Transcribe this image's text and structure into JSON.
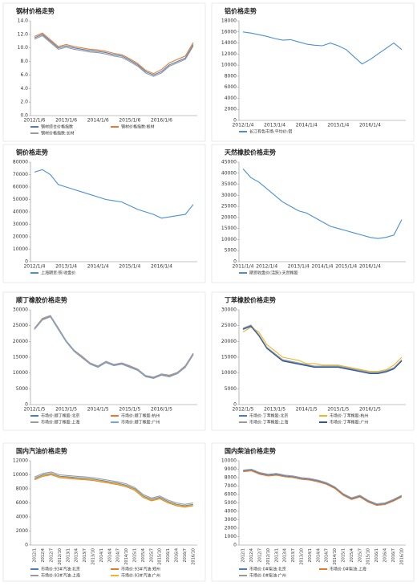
{
  "chart_data": [
    {
      "type": "line",
      "title": "钢材价格走势",
      "categories": [
        "2012/1/6",
        null,
        null,
        null,
        "2013/1/6",
        null,
        null,
        null,
        "2014/1/6",
        null,
        null,
        null,
        "2015/1/6",
        null,
        null,
        null,
        "2016/1/6",
        null,
        null,
        null,
        null
      ],
      "ylim": [
        0,
        14
      ],
      "yticks": [
        {
          "value": 0,
          "label": "0.0"
        },
        {
          "value": 2,
          "label": "2.0"
        },
        {
          "value": 4,
          "label": "4.0"
        },
        {
          "value": 6,
          "label": "6.0"
        },
        {
          "value": 8,
          "label": "8.0"
        },
        {
          "value": 10,
          "label": "10.0"
        },
        {
          "value": 12,
          "label": "12.0"
        },
        {
          "value": 14,
          "label": "14.0"
        }
      ],
      "series": [
        {
          "name": "钢材综合价格指数",
          "color": "#4a7ebb",
          "values": [
            11.5,
            12,
            11,
            10,
            10.3,
            10,
            9.8,
            9.6,
            9.5,
            9.3,
            9,
            8.8,
            8.2,
            7.5,
            6.5,
            6,
            6.5,
            7.5,
            8,
            8.5,
            10.5
          ]
        },
        {
          "name": "钢材价格指数:板材",
          "color": "#e8792b",
          "values": [
            11.7,
            12.2,
            11.2,
            10.2,
            10.5,
            10.2,
            10,
            9.8,
            9.7,
            9.5,
            9.2,
            9,
            8.4,
            7.7,
            6.7,
            6.2,
            6.8,
            7.8,
            8.3,
            8.8,
            10.8
          ]
        },
        {
          "name": "钢材价格指数:长材",
          "color": "#999999",
          "values": [
            11.3,
            11.8,
            10.8,
            9.8,
            10.1,
            9.8,
            9.6,
            9.4,
            9.3,
            9.1,
            8.8,
            8.6,
            8,
            7.3,
            6.3,
            5.8,
            6.3,
            7.3,
            7.8,
            8.3,
            10.3
          ]
        }
      ]
    },
    {
      "type": "line",
      "title": "铝价格走势",
      "categories": [
        "2012/1/4",
        null,
        null,
        null,
        "2013/1/4",
        null,
        null,
        null,
        "2014/1/4",
        null,
        null,
        null,
        "2015/1/4",
        null,
        null,
        null,
        "2016/1/4",
        null,
        null,
        null,
        null
      ],
      "ylim": [
        0,
        18000
      ],
      "yticks": [
        0,
        2000,
        4000,
        6000,
        8000,
        10000,
        12000,
        14000,
        16000,
        18000
      ],
      "series": [
        {
          "name": "长江有色市场:平均价:铝",
          "color": "#4a8fd4",
          "values": [
            16000,
            15800,
            15500,
            15200,
            14800,
            14500,
            14600,
            14200,
            13800,
            13600,
            13500,
            14000,
            13500,
            12800,
            11500,
            10200,
            11000,
            12000,
            13000,
            14000,
            12800
          ]
        }
      ]
    },
    {
      "type": "line",
      "title": "铜价格走势",
      "categories": [
        "2012/1/4",
        null,
        null,
        null,
        "2013/1/4",
        null,
        null,
        null,
        "2014/1/4",
        null,
        null,
        null,
        "2015/1/4",
        null,
        null,
        null,
        "2016/1/4",
        null,
        null,
        null,
        null
      ],
      "ylim": [
        0,
        80000
      ],
      "yticks": [
        0,
        10000,
        20000,
        30000,
        40000,
        50000,
        60000,
        70000,
        80000
      ],
      "series": [
        {
          "name": "上海期货:铜 收盘价",
          "color": "#4a8fd4",
          "values": [
            72000,
            74000,
            70000,
            62000,
            60000,
            58000,
            56000,
            54000,
            52000,
            50000,
            49000,
            48000,
            45000,
            42000,
            40000,
            38000,
            35000,
            36000,
            37000,
            38000,
            46000
          ]
        }
      ]
    },
    {
      "type": "line",
      "title": "天然橡胶价格走势",
      "categories": [
        "2011/1/4",
        null,
        null,
        "2012/1/4",
        null,
        null,
        null,
        "2013/1/4",
        null,
        null,
        "2014/1/4",
        null,
        null,
        "2015/1/4",
        null,
        null,
        "2016/1/4",
        null,
        null,
        null,
        null
      ],
      "ylim": [
        0,
        45000
      ],
      "yticks": [
        0,
        5000,
        10000,
        15000,
        20000,
        25000,
        30000,
        35000,
        40000,
        45000
      ],
      "series": [
        {
          "name": "期货收盘价(活跃):天然橡胶",
          "color": "#4a8fd4",
          "values": [
            42000,
            38000,
            36000,
            33000,
            30000,
            27000,
            25000,
            23000,
            22000,
            20000,
            18000,
            16000,
            15000,
            14000,
            13000,
            12000,
            11000,
            10500,
            11000,
            12000,
            19000
          ]
        }
      ]
    },
    {
      "type": "line",
      "title": "顺丁橡胶价格走势",
      "categories": [
        "2012/1/5",
        null,
        null,
        null,
        "2013/1/5",
        null,
        null,
        null,
        "2014/1/5",
        null,
        null,
        null,
        "2015/1/5",
        null,
        null,
        null,
        "2016/1/5",
        null,
        null,
        null,
        null
      ],
      "ylim": [
        0,
        30000
      ],
      "yticks": [
        0,
        5000,
        10000,
        15000,
        20000,
        25000,
        30000
      ],
      "series": [
        {
          "name": "市场价:顺丁橡胶:北京",
          "color": "#4a7ebb",
          "values": [
            24000,
            27000,
            28000,
            24000,
            20000,
            17000,
            15000,
            13000,
            12000,
            13500,
            12500,
            13000,
            12000,
            11000,
            9000,
            8500,
            9500,
            9000,
            10000,
            12000,
            16000
          ]
        },
        {
          "name": "市场价:顺丁橡胶:杭州",
          "color": "#e8792b",
          "values": [
            24200,
            27300,
            28200,
            24300,
            20200,
            17200,
            15300,
            13200,
            12200,
            13700,
            12700,
            13200,
            12300,
            11200,
            9200,
            8700,
            9700,
            9300,
            10200,
            12300,
            16300
          ]
        },
        {
          "name": "市场价:顺丁橡胶:上海",
          "color": "#999999",
          "values": [
            23800,
            26800,
            27800,
            23800,
            19800,
            16800,
            14800,
            12800,
            11800,
            13300,
            12300,
            12800,
            11800,
            10800,
            8800,
            8300,
            9300,
            8800,
            9800,
            11800,
            15800
          ]
        },
        {
          "name": "市场价:顺丁橡胶:广州",
          "color": "#6fa8dc",
          "values": [
            24100,
            27100,
            28100,
            24100,
            20100,
            17100,
            15100,
            13100,
            12100,
            13600,
            12600,
            13100,
            12100,
            11100,
            9100,
            8600,
            9600,
            9100,
            10100,
            12100,
            16100
          ]
        }
      ]
    },
    {
      "type": "line",
      "title": "丁苯橡胶价格走势",
      "categories": [
        "2012/1/5",
        null,
        null,
        null,
        "2013/1/5",
        null,
        null,
        null,
        "2014/1/5",
        null,
        null,
        null,
        "2015/1/5",
        null,
        null,
        null,
        "2016/1/5",
        null,
        null,
        null,
        null
      ],
      "ylim": [
        0,
        30000
      ],
      "yticks": [
        0,
        5000,
        10000,
        15000,
        20000,
        25000,
        30000
      ],
      "series": [
        {
          "name": "市场价:丁苯橡胶:北京",
          "color": "#4a7ebb",
          "values": [
            24000,
            25000,
            22000,
            18000,
            16000,
            14000,
            13500,
            13000,
            12500,
            12000,
            12000,
            12000,
            12000,
            11500,
            11000,
            10500,
            10000,
            10000,
            10500,
            11500,
            14000
          ]
        },
        {
          "name": "市场价:丁苯橡胶:杭州",
          "color": "#e8b72b",
          "values": [
            23000,
            24500,
            23000,
            19000,
            17000,
            15000,
            14500,
            14000,
            13000,
            13000,
            12500,
            12500,
            12500,
            12000,
            11500,
            11000,
            10500,
            10500,
            11000,
            12500,
            15000
          ]
        },
        {
          "name": "市场价:丁苯橡胶:上海",
          "color": "#999999",
          "values": [
            24200,
            25200,
            22200,
            18200,
            16200,
            14200,
            13700,
            13200,
            12700,
            12200,
            12200,
            12200,
            12200,
            11700,
            11200,
            10700,
            10200,
            10200,
            10700,
            11700,
            14200
          ]
        },
        {
          "name": "市场价:丁苯橡胶:广州",
          "color": "#2f5597",
          "values": [
            23800,
            24800,
            21800,
            17800,
            15800,
            13800,
            13300,
            12800,
            12300,
            11800,
            11800,
            11800,
            11800,
            11300,
            10800,
            10300,
            9800,
            9800,
            10300,
            11300,
            13800
          ]
        }
      ]
    },
    {
      "type": "line",
      "title": "国内汽油价格走势",
      "categories": [
        "2012/1",
        "2012/4",
        "2012/7",
        "2012/10",
        "2013/1",
        "2013/4",
        "2013/7",
        "2013/10",
        "2014/1",
        "2014/4",
        "2014/7",
        "2014/10",
        "2015/1",
        "2015/4",
        "2015/7",
        "2015/10",
        "2016/1",
        "2016/4",
        "2016/7",
        "2016/10"
      ],
      "ylim": [
        0,
        12000
      ],
      "yticks": [
        0,
        2000,
        4000,
        6000,
        8000,
        10000,
        12000
      ],
      "series": [
        {
          "name": "市场价:93#汽油:北京",
          "color": "#4a7ebb",
          "values": [
            9500,
            10000,
            10200,
            9800,
            9700,
            9600,
            9500,
            9400,
            9200,
            9000,
            8800,
            8500,
            8000,
            7000,
            6500,
            6800,
            6200,
            5800,
            5600,
            5800
          ]
        },
        {
          "name": "市场价:93#汽油:郑州",
          "color": "#e8792b",
          "values": [
            9300,
            9800,
            10000,
            9600,
            9500,
            9400,
            9300,
            9200,
            9000,
            8800,
            8600,
            8300,
            7800,
            6800,
            6300,
            6600,
            6000,
            5600,
            5400,
            5600
          ]
        },
        {
          "name": "市场价:93#汽油:上海",
          "color": "#999999",
          "values": [
            9700,
            10200,
            10400,
            10000,
            9900,
            9800,
            9700,
            9600,
            9400,
            9200,
            9000,
            8700,
            8200,
            7200,
            6700,
            7000,
            6400,
            6000,
            5800,
            6000
          ]
        },
        {
          "name": "市场价:93#汽油:广州",
          "color": "#e8b72b",
          "values": [
            9400,
            9900,
            10100,
            9700,
            9600,
            9500,
            9400,
            9300,
            9100,
            8900,
            8700,
            8400,
            7900,
            6900,
            6400,
            6700,
            6100,
            5700,
            5500,
            5700
          ]
        }
      ]
    },
    {
      "type": "line",
      "title": "国内柴油价格走势",
      "categories": [
        "2012/1",
        "2012/4",
        "2012/7",
        "2012/10",
        "2013/1",
        "2013/4",
        "2013/7",
        "2013/10",
        "2014/1",
        "2014/4",
        "2014/7",
        "2014/10",
        "2015/1",
        "2015/4",
        "2015/7",
        "2015/10",
        "2016/1",
        "2016/4",
        "2016/7",
        "2016/10"
      ],
      "ylim": [
        0,
        10000
      ],
      "yticks": [
        0,
        1000,
        2000,
        3000,
        4000,
        5000,
        6000,
        7000,
        8000,
        9000,
        10000
      ],
      "series": [
        {
          "name": "市场价:0#柴油:北京",
          "color": "#4a7ebb",
          "values": [
            8800,
            8900,
            8500,
            8300,
            8400,
            8200,
            8100,
            7900,
            7800,
            7600,
            7300,
            6800,
            6000,
            5500,
            5800,
            5200,
            4800,
            4900,
            5300,
            5800
          ]
        },
        {
          "name": "市场价:0#柴油:上海",
          "color": "#e8792b",
          "values": [
            8700,
            8800,
            8400,
            8200,
            8300,
            8100,
            8000,
            7800,
            7700,
            7500,
            7200,
            6700,
            5900,
            5400,
            5700,
            5100,
            4700,
            4800,
            5200,
            5700
          ]
        },
        {
          "name": "市场价:0#柴油:广州",
          "color": "#999999",
          "values": [
            8900,
            9000,
            8600,
            8400,
            8500,
            8300,
            8200,
            8000,
            7900,
            7700,
            7400,
            6900,
            6100,
            5600,
            5900,
            5300,
            4900,
            5000,
            5400,
            5900
          ]
        }
      ]
    }
  ]
}
